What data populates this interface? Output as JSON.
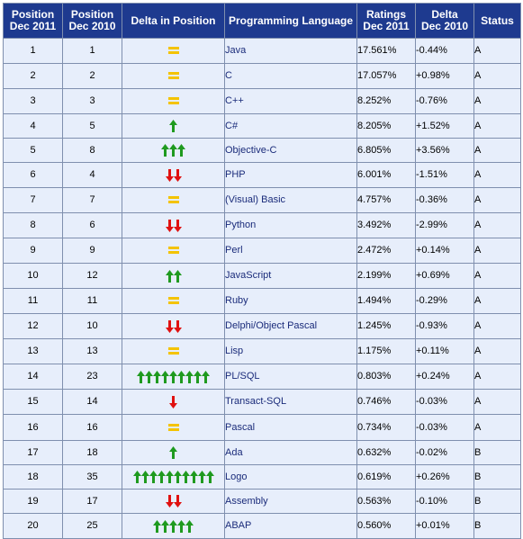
{
  "headers": {
    "pos2011": [
      "Position",
      "Dec 2011"
    ],
    "pos2010": [
      "Position",
      "Dec 2010"
    ],
    "delta_pos": "Delta in Position",
    "language": "Programming Language",
    "ratings": [
      "Ratings",
      "Dec 2011"
    ],
    "delta": [
      "Delta",
      "Dec 2010"
    ],
    "status": "Status"
  },
  "colors": {
    "header_bg": "#1e3a8f",
    "row_bg": "#e7eefb",
    "link": "#1a2b7a",
    "equal": "#f4c300",
    "up": "#1f9a1f",
    "down": "#e01010"
  },
  "rows": [
    {
      "pos2011": "1",
      "pos2010": "1",
      "language": "Java",
      "rating": "17.561%",
      "delta": "-0.44%",
      "status": "A"
    },
    {
      "pos2011": "2",
      "pos2010": "2",
      "language": "C",
      "rating": "17.057%",
      "delta": "+0.98%",
      "status": "A"
    },
    {
      "pos2011": "3",
      "pos2010": "3",
      "language": "C++",
      "rating": "8.252%",
      "delta": "-0.76%",
      "status": "A"
    },
    {
      "pos2011": "4",
      "pos2010": "5",
      "language": "C#",
      "rating": "8.205%",
      "delta": "+1.52%",
      "status": "A"
    },
    {
      "pos2011": "5",
      "pos2010": "8",
      "language": "Objective-C",
      "rating": "6.805%",
      "delta": "+3.56%",
      "status": "A"
    },
    {
      "pos2011": "6",
      "pos2010": "4",
      "language": "PHP",
      "rating": "6.001%",
      "delta": "-1.51%",
      "status": "A"
    },
    {
      "pos2011": "7",
      "pos2010": "7",
      "language": "(Visual) Basic",
      "rating": "4.757%",
      "delta": "-0.36%",
      "status": "A"
    },
    {
      "pos2011": "8",
      "pos2010": "6",
      "language": "Python",
      "rating": "3.492%",
      "delta": "-2.99%",
      "status": "A"
    },
    {
      "pos2011": "9",
      "pos2010": "9",
      "language": "Perl",
      "rating": "2.472%",
      "delta": "+0.14%",
      "status": "A"
    },
    {
      "pos2011": "10",
      "pos2010": "12",
      "language": "JavaScript",
      "rating": "2.199%",
      "delta": "+0.69%",
      "status": "A"
    },
    {
      "pos2011": "11",
      "pos2010": "11",
      "language": "Ruby",
      "rating": "1.494%",
      "delta": "-0.29%",
      "status": "A"
    },
    {
      "pos2011": "12",
      "pos2010": "10",
      "language": "Delphi/Object Pascal",
      "rating": "1.245%",
      "delta": "-0.93%",
      "status": "A"
    },
    {
      "pos2011": "13",
      "pos2010": "13",
      "language": "Lisp",
      "rating": "1.175%",
      "delta": "+0.11%",
      "status": "A"
    },
    {
      "pos2011": "14",
      "pos2010": "23",
      "language": "PL/SQL",
      "rating": "0.803%",
      "delta": "+0.24%",
      "status": "A"
    },
    {
      "pos2011": "15",
      "pos2010": "14",
      "language": "Transact-SQL",
      "rating": "0.746%",
      "delta": "-0.03%",
      "status": "A"
    },
    {
      "pos2011": "16",
      "pos2010": "16",
      "language": "Pascal",
      "rating": "0.734%",
      "delta": "-0.03%",
      "status": "A"
    },
    {
      "pos2011": "17",
      "pos2010": "18",
      "language": "Ada",
      "rating": "0.632%",
      "delta": "-0.02%",
      "status": "B"
    },
    {
      "pos2011": "18",
      "pos2010": "35",
      "language": "Logo",
      "rating": "0.619%",
      "delta": "+0.26%",
      "status": "B"
    },
    {
      "pos2011": "19",
      "pos2010": "17",
      "language": "Assembly",
      "rating": "0.563%",
      "delta": "-0.10%",
      "status": "B"
    },
    {
      "pos2011": "20",
      "pos2010": "25",
      "language": "ABAP",
      "rating": "0.560%",
      "delta": "+0.01%",
      "status": "B"
    }
  ]
}
